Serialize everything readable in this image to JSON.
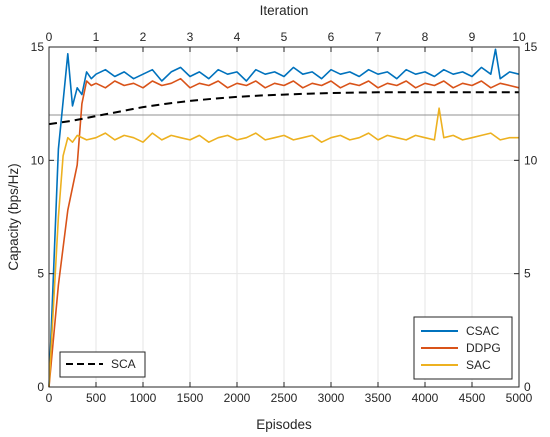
{
  "chart_data": {
    "type": "line",
    "title": "",
    "xlabel": "Episodes",
    "ylabel": "Capacity (bps/Hz)",
    "x2label": "Iteration",
    "xlim": [
      0,
      5000
    ],
    "ylim": [
      0,
      15
    ],
    "x2lim": [
      0,
      10
    ],
    "xticks": [
      0,
      500,
      1000,
      1500,
      2000,
      2500,
      3000,
      3500,
      4000,
      4500,
      5000
    ],
    "yticks": [
      0,
      5,
      10,
      15
    ],
    "x2ticks": [
      0,
      1,
      2,
      3,
      4,
      5,
      6,
      7,
      8,
      9,
      10
    ],
    "grid": true,
    "series": [
      {
        "name": "CSAC",
        "color": "#0072BD",
        "axis": "episodes",
        "style": "solid",
        "x": [
          0,
          100,
          200,
          250,
          300,
          350,
          400,
          450,
          500,
          600,
          700,
          800,
          900,
          1000,
          1100,
          1200,
          1300,
          1400,
          1500,
          1600,
          1700,
          1800,
          1900,
          2000,
          2100,
          2200,
          2300,
          2400,
          2500,
          2600,
          2700,
          2800,
          2900,
          3000,
          3100,
          3200,
          3300,
          3400,
          3500,
          3600,
          3700,
          3800,
          3900,
          4000,
          4100,
          4200,
          4300,
          4400,
          4500,
          4600,
          4700,
          4750,
          4800,
          4900,
          5000
        ],
        "y": [
          0,
          10.5,
          14.7,
          12.4,
          13.2,
          12.9,
          13.9,
          13.6,
          13.8,
          14.0,
          13.7,
          13.9,
          13.6,
          13.8,
          14.0,
          13.5,
          13.9,
          14.1,
          13.7,
          13.9,
          13.6,
          14.0,
          13.8,
          13.9,
          13.5,
          14.0,
          13.8,
          13.9,
          13.7,
          14.1,
          13.8,
          13.9,
          13.6,
          14.0,
          13.8,
          13.9,
          13.7,
          14.0,
          13.8,
          13.9,
          13.6,
          14.0,
          13.8,
          13.9,
          13.7,
          14.0,
          13.8,
          13.9,
          13.7,
          14.1,
          13.8,
          14.9,
          13.6,
          13.9,
          13.8
        ]
      },
      {
        "name": "DDPG",
        "color": "#D95319",
        "axis": "episodes",
        "style": "solid",
        "x": [
          0,
          100,
          200,
          300,
          350,
          400,
          450,
          500,
          600,
          700,
          800,
          900,
          1000,
          1100,
          1200,
          1300,
          1400,
          1500,
          1600,
          1700,
          1800,
          1900,
          2000,
          2100,
          2200,
          2300,
          2400,
          2500,
          2600,
          2700,
          2800,
          2900,
          3000,
          3100,
          3200,
          3300,
          3400,
          3500,
          3600,
          3700,
          3800,
          3900,
          4000,
          4100,
          4200,
          4300,
          4400,
          4500,
          4600,
          4700,
          4800,
          4900,
          5000
        ],
        "y": [
          0,
          4.5,
          7.8,
          9.8,
          12.5,
          13.5,
          13.3,
          13.4,
          13.2,
          13.5,
          13.3,
          13.4,
          13.2,
          13.5,
          13.3,
          13.4,
          13.6,
          13.2,
          13.4,
          13.3,
          13.5,
          13.2,
          13.4,
          13.3,
          13.5,
          13.2,
          13.4,
          13.3,
          13.5,
          13.2,
          13.4,
          13.3,
          13.5,
          13.2,
          13.4,
          13.3,
          13.5,
          13.2,
          13.4,
          13.3,
          13.5,
          13.2,
          13.4,
          13.3,
          13.5,
          13.2,
          13.4,
          13.3,
          13.5,
          13.2,
          13.4,
          13.3,
          13.2
        ]
      },
      {
        "name": "SAC",
        "color": "#EDB120",
        "axis": "episodes",
        "style": "solid",
        "x": [
          0,
          100,
          150,
          200,
          250,
          300,
          400,
          500,
          600,
          700,
          800,
          900,
          1000,
          1100,
          1200,
          1300,
          1400,
          1500,
          1600,
          1700,
          1800,
          1900,
          2000,
          2100,
          2200,
          2300,
          2400,
          2500,
          2600,
          2700,
          2800,
          2900,
          3000,
          3100,
          3200,
          3300,
          3400,
          3500,
          3600,
          3700,
          3800,
          3900,
          4000,
          4100,
          4150,
          4200,
          4300,
          4400,
          4500,
          4600,
          4700,
          4800,
          4900,
          5000
        ],
        "y": [
          0,
          7.5,
          10.2,
          11.0,
          10.8,
          11.1,
          10.9,
          11.0,
          11.2,
          10.9,
          11.1,
          11.0,
          10.8,
          11.2,
          10.9,
          11.1,
          11.0,
          10.9,
          11.1,
          10.8,
          11.0,
          11.1,
          10.9,
          11.0,
          11.2,
          10.9,
          11.0,
          11.1,
          10.9,
          11.0,
          11.1,
          10.8,
          11.0,
          11.1,
          10.9,
          11.0,
          11.2,
          10.9,
          11.1,
          11.0,
          10.9,
          11.1,
          11.0,
          10.9,
          12.3,
          11.0,
          11.1,
          10.9,
          11.0,
          11.1,
          11.2,
          10.9,
          11.0,
          11.0
        ]
      },
      {
        "name": "SCA",
        "color": "#000000",
        "axis": "iteration",
        "style": "dashed",
        "x": [
          0,
          0.5,
          1,
          1.5,
          2,
          2.5,
          3,
          3.5,
          4,
          4.5,
          5,
          5.5,
          6,
          6.5,
          7,
          7.5,
          8,
          8.5,
          9,
          9.5,
          10
        ],
        "y": [
          11.6,
          11.75,
          11.95,
          12.15,
          12.35,
          12.5,
          12.62,
          12.72,
          12.8,
          12.86,
          12.9,
          12.94,
          12.97,
          12.99,
          13.0,
          13.0,
          13.0,
          13.0,
          13.0,
          13.0,
          13.0
        ]
      }
    ],
    "reference_line": {
      "y": 12.0,
      "color": "#909090"
    },
    "legends": [
      {
        "placement": "bottom-right",
        "entries": [
          "CSAC",
          "DDPG",
          "SAC"
        ]
      },
      {
        "placement": "bottom-left",
        "entries": [
          "SCA"
        ]
      }
    ]
  }
}
